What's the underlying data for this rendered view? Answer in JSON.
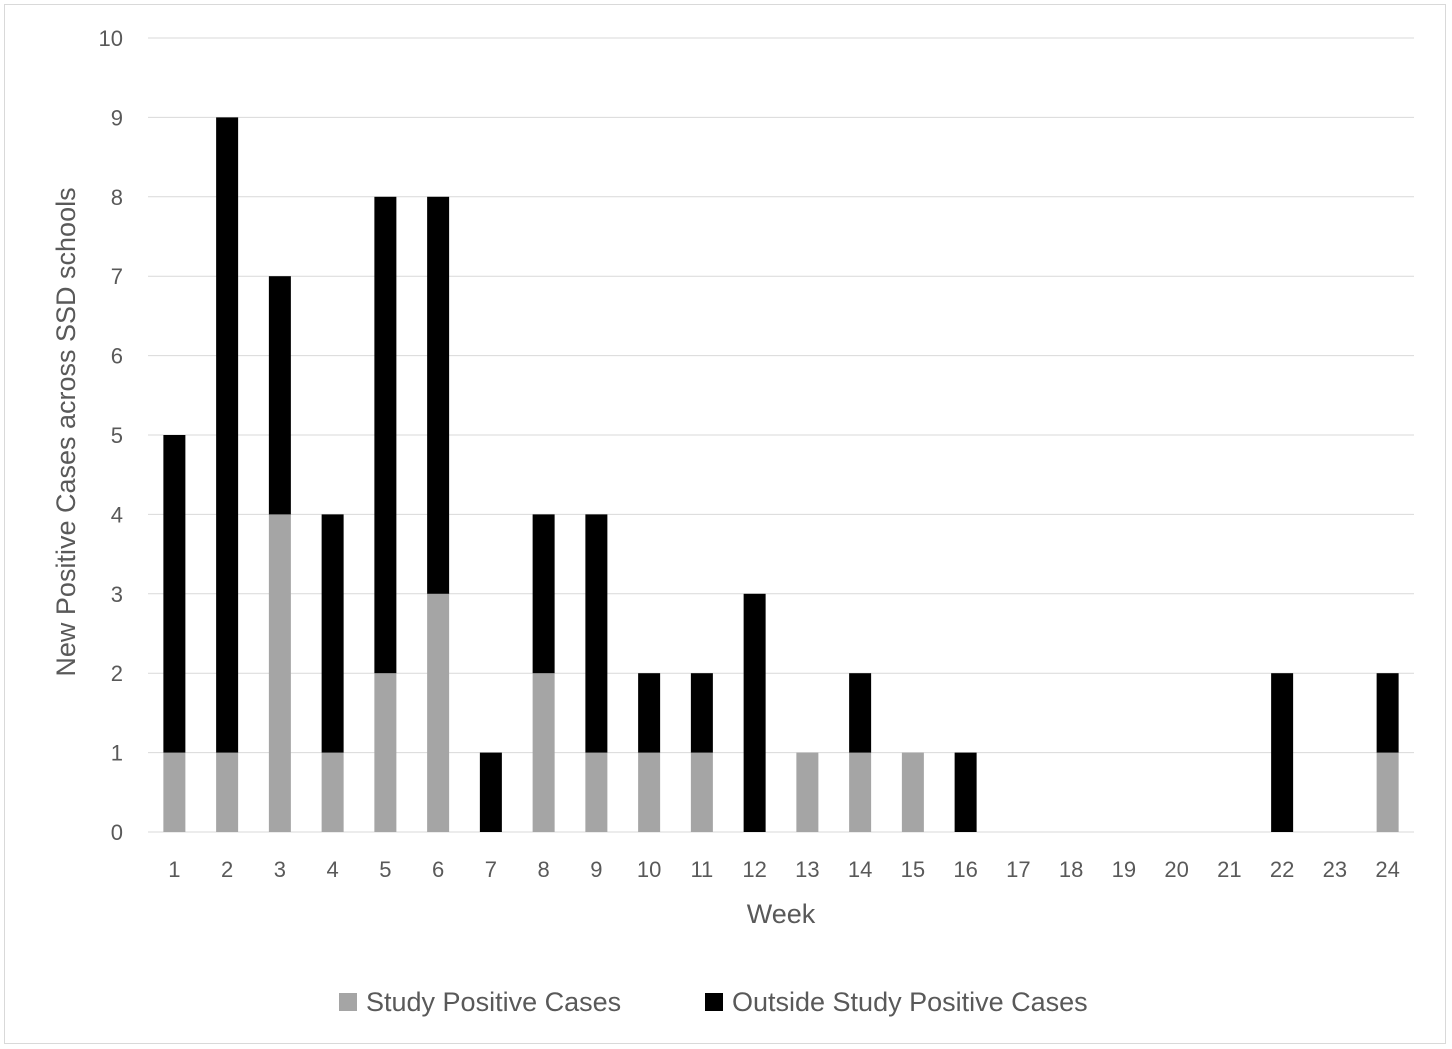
{
  "chart_data": {
    "type": "bar",
    "stacked": true,
    "title": "",
    "xlabel": "Week",
    "ylabel": "New Positive Cases across SSD schools",
    "ylim": [
      0,
      10
    ],
    "yticks": [
      "0",
      "1",
      "2",
      "3",
      "4",
      "5",
      "6",
      "7",
      "8",
      "9",
      "10"
    ],
    "grid": true,
    "legend_position": "bottom",
    "categories": [
      "1",
      "2",
      "3",
      "4",
      "5",
      "6",
      "7",
      "8",
      "9",
      "10",
      "11",
      "12",
      "13",
      "14",
      "15",
      "16",
      "17",
      "18",
      "19",
      "20",
      "21",
      "22",
      "23",
      "24"
    ],
    "series": [
      {
        "name": "Study Positive Cases",
        "color": "#a5a5a5",
        "values": [
          1,
          1,
          4,
          1,
          2,
          3,
          0,
          2,
          1,
          1,
          1,
          0,
          1,
          1,
          1,
          0,
          0,
          0,
          0,
          0,
          0,
          0,
          0,
          1
        ]
      },
      {
        "name": "Outside Study Positive Cases",
        "color": "#000000",
        "values": [
          4,
          8,
          3,
          3,
          6,
          5,
          1,
          2,
          3,
          1,
          1,
          3,
          0,
          1,
          0,
          1,
          0,
          0,
          0,
          0,
          0,
          2,
          0,
          1
        ]
      }
    ]
  }
}
